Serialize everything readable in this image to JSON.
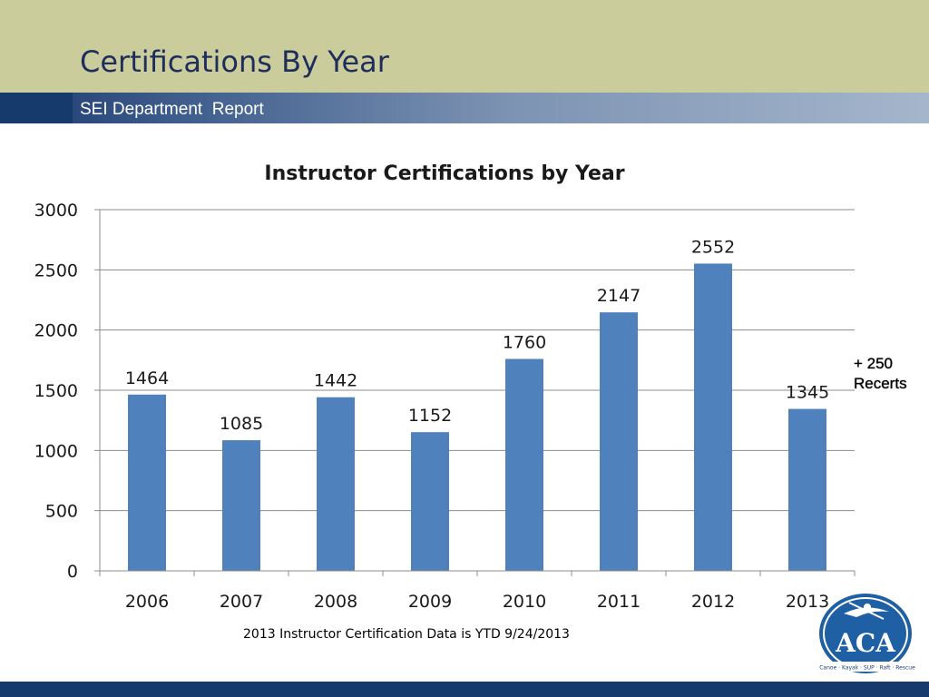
{
  "slide": {
    "title": "Certifications By Year",
    "subtitle": "SEI Department  Report",
    "annotation_line1": "+ 250",
    "annotation_line2": "Recerts",
    "footnote": "2013 Instructor Certification Data is YTD 9/24/2013"
  },
  "logo": {
    "text": "ACA",
    "tagline": "Canoe · Kayak · SUP · Raft · Rescue"
  },
  "colors": {
    "bar": "#4f81bd",
    "top_band": "#cbcc9b",
    "navy": "#163a6b"
  },
  "chart_data": {
    "type": "bar",
    "title": "Instructor Certifications by Year",
    "categories": [
      "2006",
      "2007",
      "2008",
      "2009",
      "2010",
      "2011",
      "2012",
      "2013"
    ],
    "values": [
      1464,
      1085,
      1442,
      1152,
      1760,
      2147,
      2552,
      1345
    ],
    "ylim": [
      0,
      3000
    ],
    "yticks": [
      0,
      500,
      1000,
      1500,
      2000,
      2500,
      3000
    ],
    "grid": true,
    "legend": "none"
  }
}
